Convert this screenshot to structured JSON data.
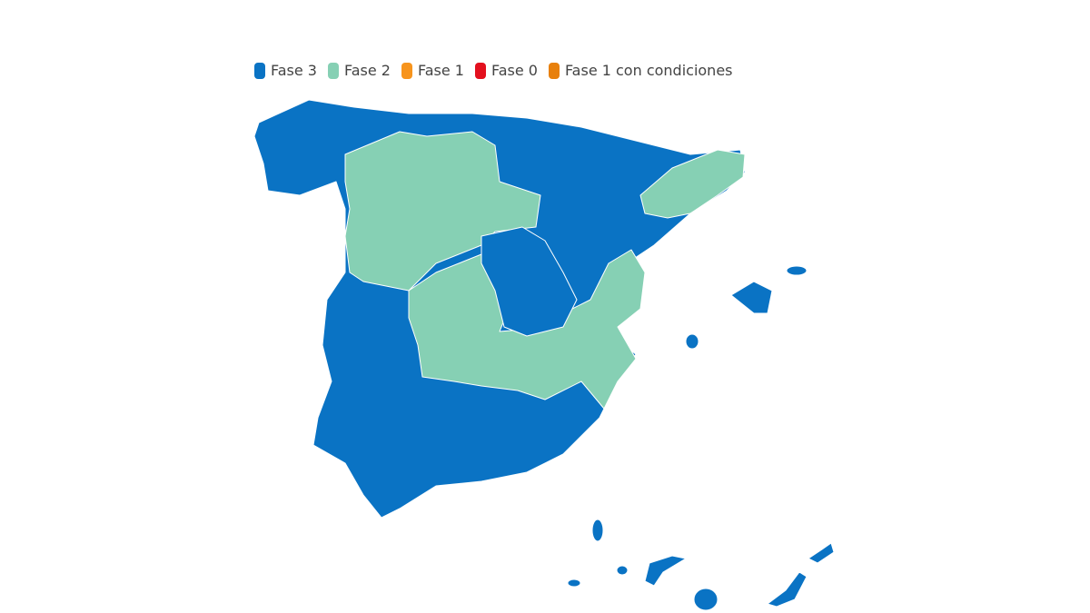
{
  "legend": [
    {
      "label": "Fase 3",
      "color": "#0a73c4"
    },
    {
      "label": "Fase 2",
      "color": "#86d0b4"
    },
    {
      "label": "Fase 1",
      "color": "#f7941d"
    },
    {
      "label": "Fase 0",
      "color": "#e3101e"
    },
    {
      "label": "Fase 1 con condiciones",
      "color": "#e8800c"
    }
  ],
  "map": {
    "regions": [
      {
        "phase": "Fase 3"
      },
      {
        "phase": "Fase 2"
      },
      {
        "phase": "Fase 2"
      },
      {
        "phase": "Fase 3"
      },
      {
        "phase": "Fase 2"
      },
      {
        "phase": "Fase 3"
      }
    ]
  }
}
